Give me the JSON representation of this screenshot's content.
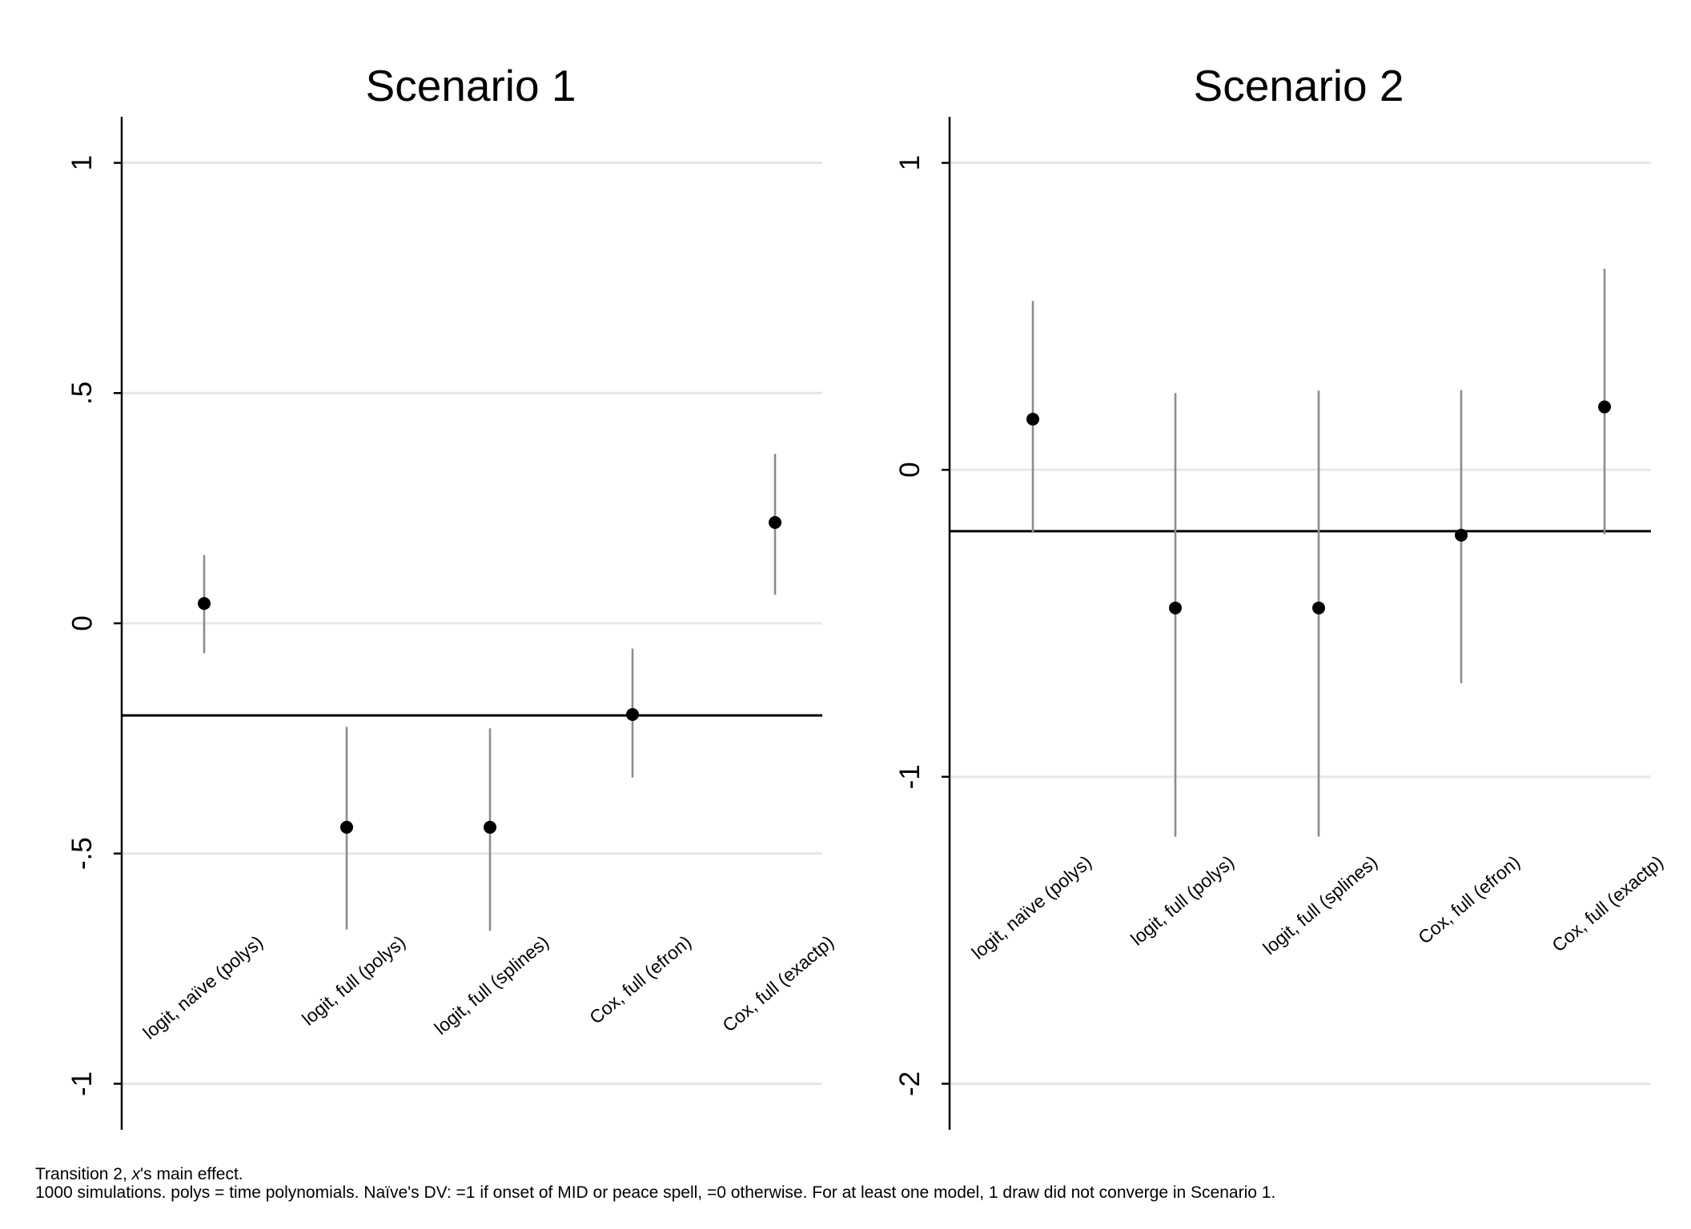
{
  "chart_data": [
    {
      "type": "scatter",
      "title": "Scenario 1",
      "categories": [
        "logit, naïve (polys)",
        "logit, full (polys)",
        "logit, full (splines)",
        "Cox, full (efron)",
        "Cox, full (exactp)"
      ],
      "estimates": [
        0.043,
        -0.443,
        -0.443,
        -0.198,
        0.219
      ],
      "ci_low": [
        -0.065,
        -0.665,
        -0.668,
        -0.335,
        0.062
      ],
      "ci_high": [
        0.148,
        -0.225,
        -0.228,
        -0.055,
        0.368
      ],
      "reference_line": -0.2,
      "ylim": [
        -1.1,
        1.1
      ],
      "yticks": [
        1,
        0.5,
        0,
        -0.5,
        -1
      ],
      "ytick_labels": [
        "1",
        ".5",
        "0",
        "-.5",
        "-1"
      ],
      "grid": true,
      "color": "#000000",
      "ci_color": "#8c8c8c"
    },
    {
      "type": "scatter",
      "title": "Scenario 2",
      "categories": [
        "logit, naïve (polys)",
        "logit, full (polys)",
        "logit, full (splines)",
        "Cox, full (efron)",
        "Cox, full (exactp)"
      ],
      "estimates": [
        0.165,
        -0.45,
        -0.45,
        -0.213,
        0.205
      ],
      "ci_low": [
        -0.205,
        -1.195,
        -1.195,
        -0.695,
        -0.21
      ],
      "ci_high": [
        0.55,
        0.25,
        0.258,
        0.26,
        0.655
      ],
      "reference_line": -0.2,
      "ylim": [
        -2.15,
        1.15
      ],
      "yticks": [
        1,
        0,
        -1,
        -2
      ],
      "ytick_labels": [
        "1",
        "0",
        "-1",
        "-2"
      ],
      "grid": true,
      "color": "#000000",
      "ci_color": "#8c8c8c"
    }
  ],
  "notes": [
    "Transition 2, x's main effect.",
    "1000 simulations.  polys = time polynomials.  Naïve's DV: =1 if onset of MID or peace spell, =0 otherwise.  For at least one model, 1 draw did not converge in Scenario 1."
  ]
}
